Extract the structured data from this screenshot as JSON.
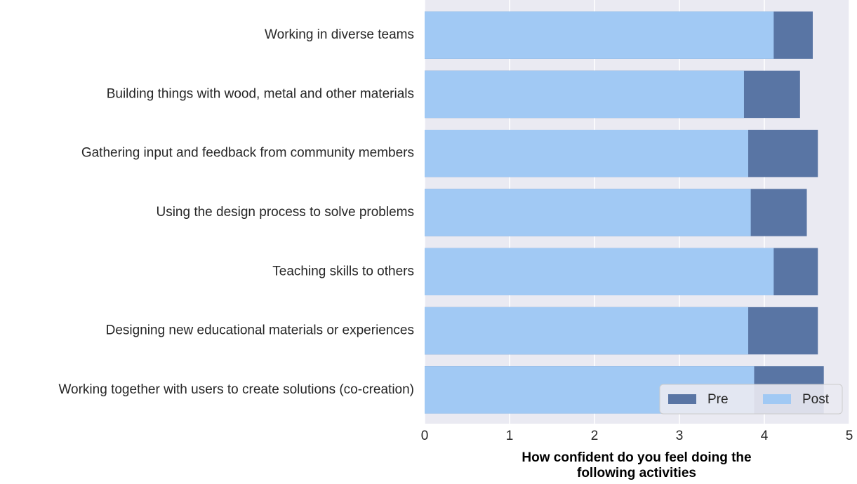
{
  "chart_data": {
    "type": "bar",
    "orientation": "horizontal",
    "barmode": "overlay",
    "xlabel": "How confident do you feel doing the following activities",
    "categories": [
      "Working in diverse teams",
      "Building things with wood, metal and other materials",
      "Gathering input and feedback from community members",
      "Using the design process to solve problems",
      "Teaching skills to others",
      "Designing new educational materials or experiences",
      "Working together with users to create solutions (co-creation)"
    ],
    "series": [
      {
        "name": "Pre",
        "color": "#5975a4",
        "values": [
          4.57,
          4.42,
          4.63,
          4.5,
          4.63,
          4.63,
          4.7
        ]
      },
      {
        "name": "Post",
        "color": "#a1c9f4",
        "values": [
          4.11,
          3.76,
          3.81,
          3.84,
          4.11,
          3.81,
          3.88
        ]
      }
    ],
    "xlim": [
      0,
      5
    ],
    "xticks": [
      0,
      1,
      2,
      3,
      4,
      5
    ],
    "grid": true,
    "legend": "lower right"
  }
}
